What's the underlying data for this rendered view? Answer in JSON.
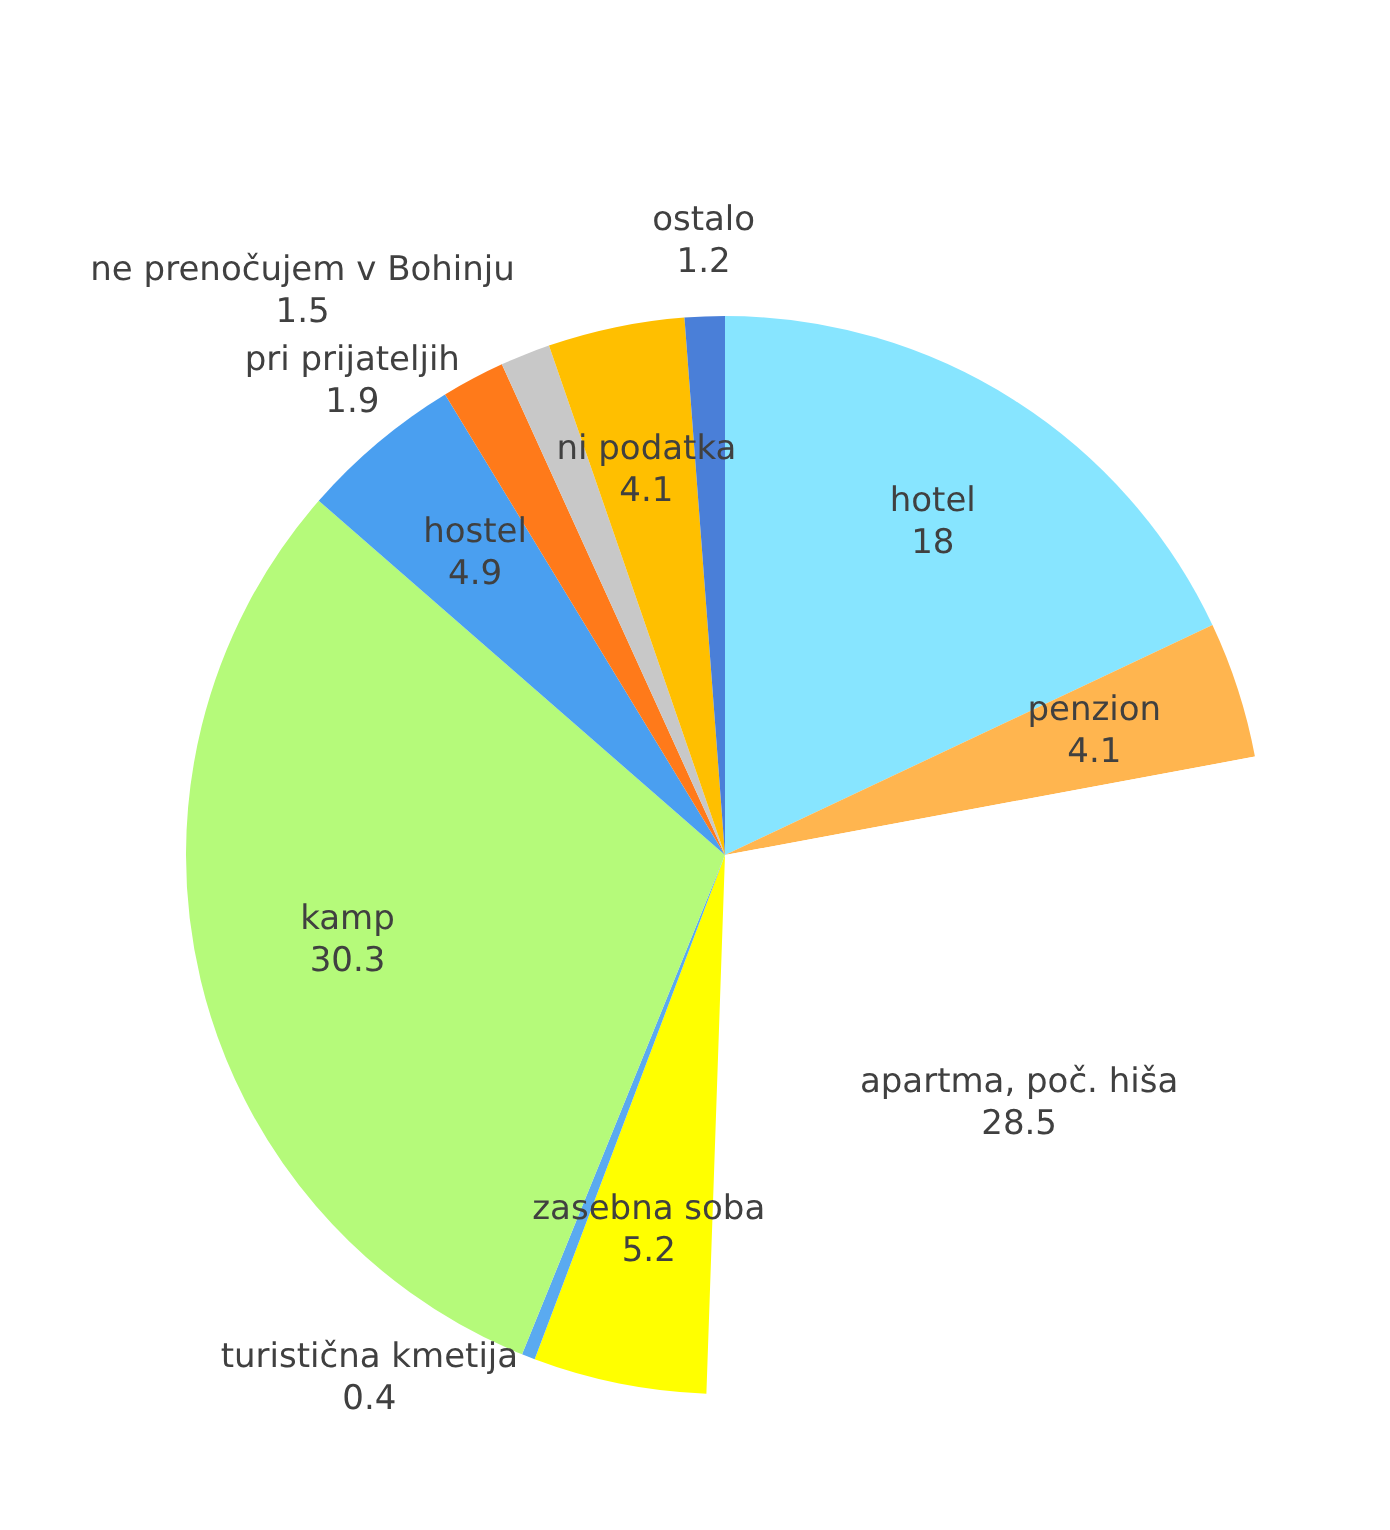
{
  "chart_data": {
    "type": "pie",
    "categories": [
      "hotel",
      "penzion",
      "apartma, poč. hiša",
      "zasebna soba",
      "turistična kmetija",
      "kamp",
      "hostel",
      "pri prijateljih",
      "ne prenočujem v Bohinju",
      "ni podatka",
      "ostalo"
    ],
    "values": [
      18,
      4.1,
      28.5,
      5.2,
      0.4,
      30.3,
      4.9,
      1.9,
      1.5,
      4.1,
      1.2
    ],
    "colors": [
      "#87e5ff",
      "#ffb54f",
      "#ffffff",
      "#ffff00",
      "#5aaaf0",
      "#b5fa7a",
      "#4a9ff0",
      "#ff7a1a",
      "#c8c8c8",
      "#ffbf00",
      "#4a7fd8"
    ],
    "data_labels": true,
    "legend": false
  }
}
